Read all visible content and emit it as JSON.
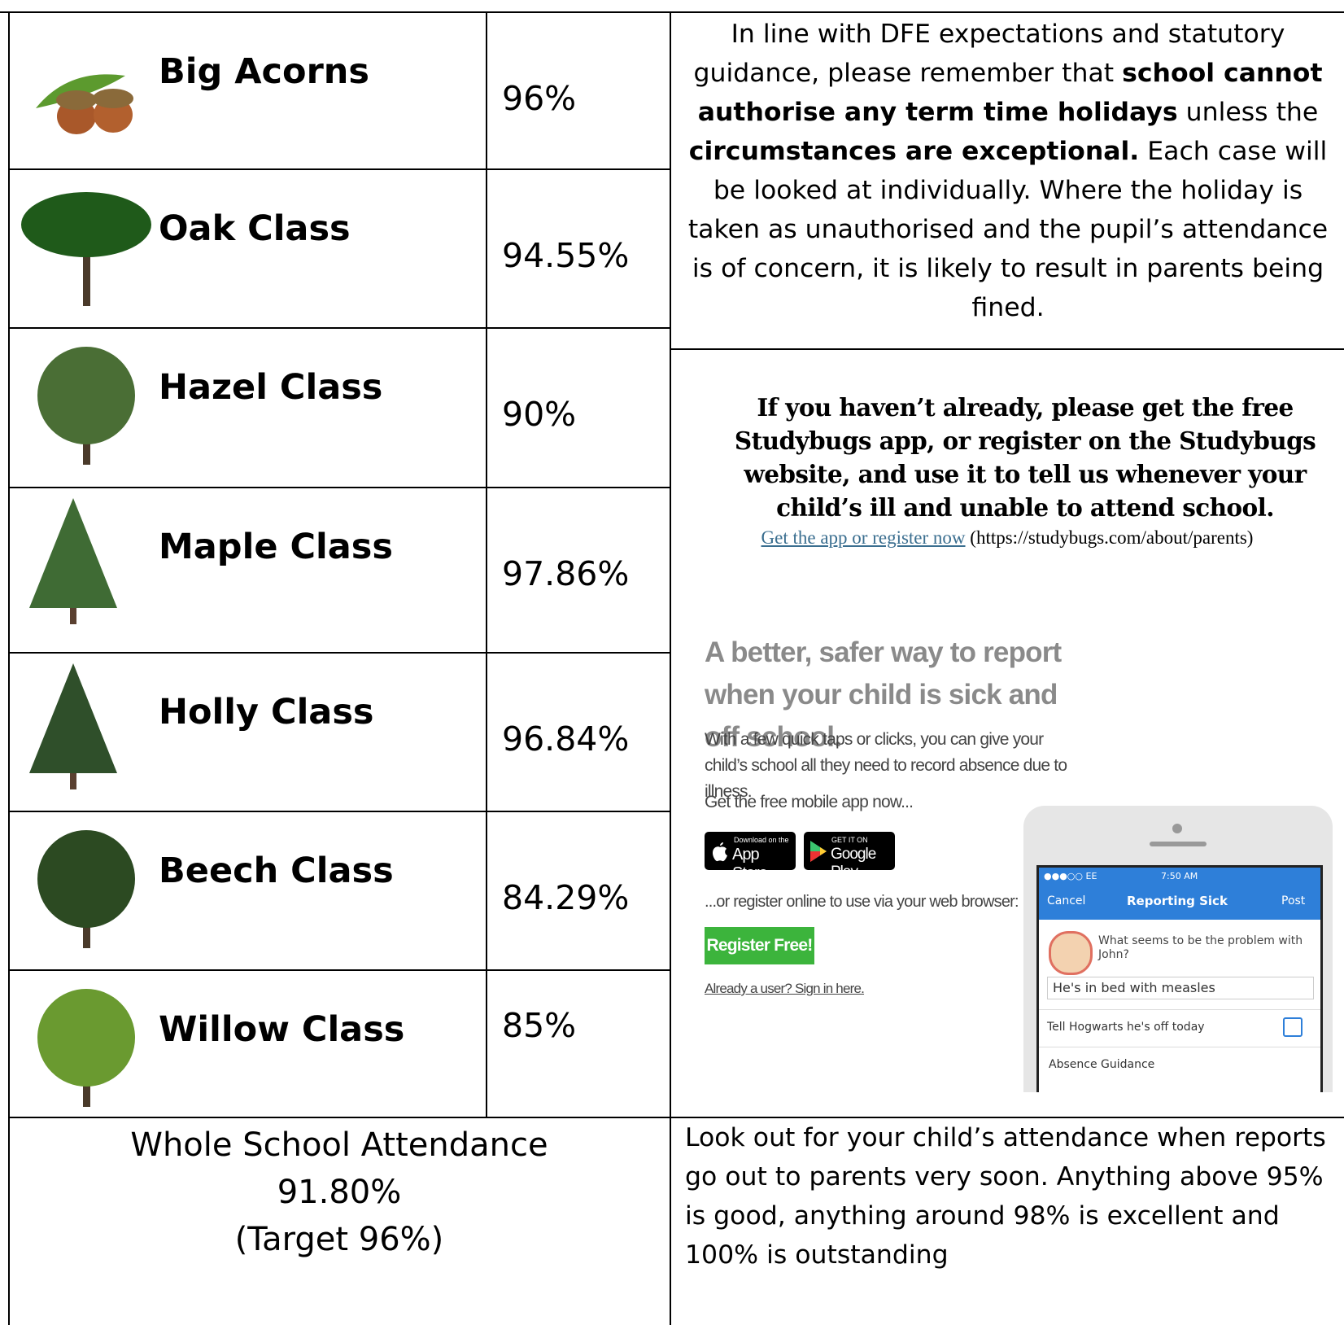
{
  "classes": [
    {
      "name": "Big Acorns",
      "attendance": "96%"
    },
    {
      "name": "Oak Class",
      "attendance": "94.55%"
    },
    {
      "name": "Hazel Class",
      "attendance": "90%"
    },
    {
      "name": "Maple Class",
      "attendance": "97.86%"
    },
    {
      "name": "Holly Class",
      "attendance": "96.84%"
    },
    {
      "name": "Beech Class",
      "attendance": "84.29%"
    },
    {
      "name": "Willow Class",
      "attendance": "85%"
    }
  ],
  "holiday_notice": {
    "segments": [
      "In line with DFE expectations and statutory guidance, please remember that ",
      "school cannot authorise any term time holidays",
      " unless the ",
      "circumstances are exceptional.",
      " Each case will be looked at individually. Where the holiday is taken as unauthorised and the pupil’s attendance is of concern, it is likely to result in parents being fined."
    ]
  },
  "studybugs": {
    "message": "If you haven’t already, please get the free Studybugs app, or register on the Studybugs website, and use it to tell us whenever your child’s ill and unable to attend school.",
    "link_text": "Get the app or register now",
    "link_url": "(https://studybugs.com/about/parents)",
    "ad": {
      "headline": "A better, safer way to report when your child is sick and off school.",
      "subtext": "With a few quick taps or clicks, you can give your child’s school all they need to record absence due to illness.",
      "get_app": "Get the free mobile app now...",
      "app_store_small": "Download on the",
      "app_store": "App Store",
      "google_play_small": "GET IT ON",
      "google_play": "Google Play",
      "register_online": "...or register online to use via your web browser:",
      "register_button": "Register Free!",
      "sign_in": "Already a user? Sign in here.",
      "phone": {
        "carrier": "●●●○○ EE",
        "time": "7:50 AM",
        "cancel": "Cancel",
        "screen_title": "Reporting Sick",
        "post": "Post",
        "question": "What seems to be the problem with John?",
        "answer": "He's in bed with measles",
        "notify": "Tell Hogwarts he's off today",
        "guidance": "Absence Guidance"
      }
    }
  },
  "whole_school": {
    "label": "Whole School Attendance",
    "value": "91.80%",
    "target": "(Target 96%)"
  },
  "reports_note": "Look out for your child’s attendance when reports go out to parents very soon. Anything above 95% is good, anything around 98% is excellent and 100% is outstanding"
}
